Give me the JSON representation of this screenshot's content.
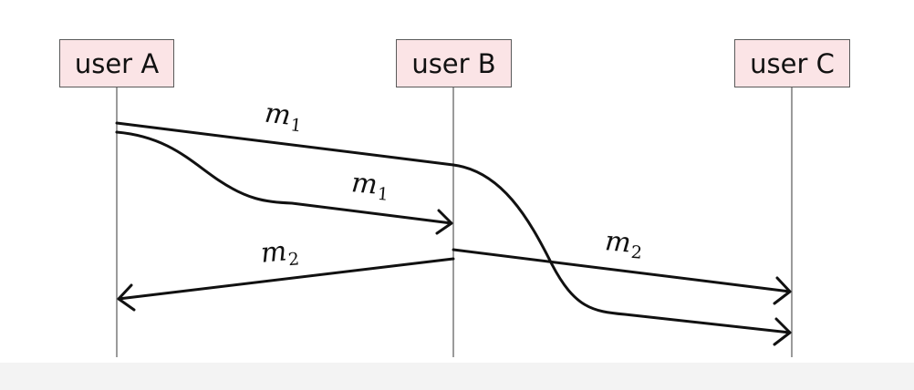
{
  "actors": {
    "a": "user A",
    "b": "user B",
    "c": "user C"
  },
  "messages": [
    {
      "name": "m",
      "index": "1"
    },
    {
      "name": "m",
      "index": "1"
    },
    {
      "name": "m",
      "index": "2"
    },
    {
      "name": "m",
      "index": "2"
    }
  ],
  "colors": {
    "actor_fill": "#fbe4e6",
    "actor_border": "#5a5a5a",
    "lifeline": "#7a7a7a",
    "arrow": "#111111"
  }
}
